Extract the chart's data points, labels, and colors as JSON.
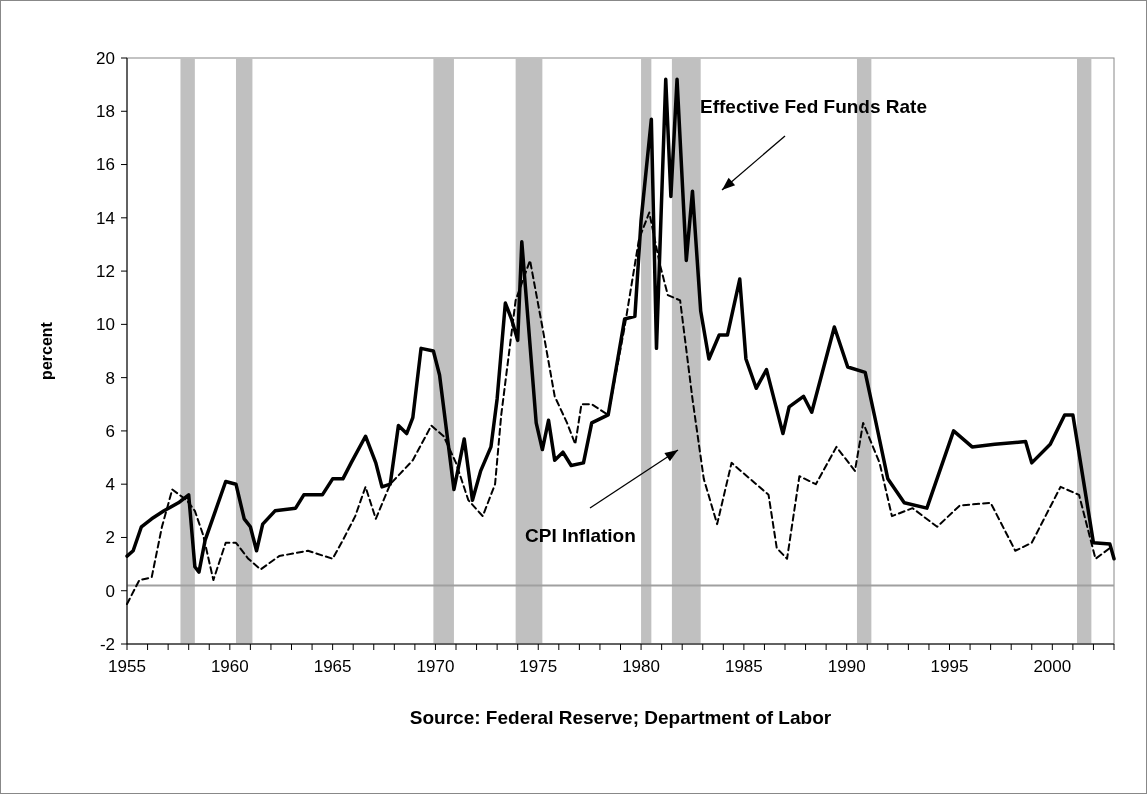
{
  "chart_data": {
    "type": "line",
    "ylabel": "percent",
    "annotations": [
      "Source: Federal Reserve; Department of Labor"
    ],
    "xlim": [
      1955,
      2003
    ],
    "xticks": [
      1955,
      {
        "value": 1956,
        "label": null
      },
      {
        "value": 1957,
        "label": null
      },
      {
        "value": 1958,
        "label": null
      },
      {
        "value": 1959,
        "label": null
      },
      1960,
      {
        "value": 1961,
        "label": null
      },
      {
        "value": 1962,
        "label": null
      },
      {
        "value": 1963,
        "label": null
      },
      {
        "value": 1964,
        "label": null
      },
      1965,
      {
        "value": 1966,
        "label": null
      },
      {
        "value": 1967,
        "label": null
      },
      {
        "value": 1968,
        "label": null
      },
      {
        "value": 1969,
        "label": null
      },
      1970,
      {
        "value": 1971,
        "label": null
      },
      {
        "value": 1972,
        "label": null
      },
      {
        "value": 1973,
        "label": null
      },
      {
        "value": 1974,
        "label": null
      },
      1975,
      {
        "value": 1976,
        "label": null
      },
      {
        "value": 1977,
        "label": null
      },
      {
        "value": 1978,
        "label": null
      },
      {
        "value": 1979,
        "label": null
      },
      1980,
      {
        "value": 1981,
        "label": null
      },
      {
        "value": 1982,
        "label": null
      },
      {
        "value": 1983,
        "label": null
      },
      {
        "value": 1984,
        "label": null
      },
      1985,
      {
        "value": 1986,
        "label": null
      },
      {
        "value": 1987,
        "label": null
      },
      {
        "value": 1988,
        "label": null
      },
      {
        "value": 1989,
        "label": null
      },
      1990,
      {
        "value": 1991,
        "label": null
      },
      {
        "value": 1992,
        "label": null
      },
      {
        "value": 1993,
        "label": null
      },
      {
        "value": 1994,
        "label": null
      },
      1995,
      {
        "value": 1996,
        "label": null
      },
      {
        "value": 1997,
        "label": null
      },
      {
        "value": 1998,
        "label": null
      },
      {
        "value": 1999,
        "label": null
      },
      2000,
      {
        "value": 2001,
        "label": null
      },
      {
        "value": 2002,
        "label": null
      },
      {
        "value": 2003,
        "label": null
      }
    ],
    "ylim": [
      -2,
      20
    ],
    "yticks": [
      -2,
      0,
      2,
      4,
      6,
      8,
      10,
      12,
      14,
      16,
      18,
      20
    ],
    "grid": false,
    "legend": false,
    "marker": "none",
    "series": [
      {
        "name": "Effective Fed Funds Rate",
        "color": "#000000",
        "line_style": "solid",
        "x": [
          1955.0,
          1955.3,
          1955.7,
          1956.2,
          1956.8,
          1957.5,
          1958.0,
          1958.3,
          1958.5,
          1958.8,
          1959.3,
          1959.8,
          1960.3,
          1960.7,
          1961.0,
          1961.3,
          1961.6,
          1962.2,
          1963.2,
          1963.6,
          1964.5,
          1965.0,
          1965.5,
          1965.9,
          1966.6,
          1967.1,
          1967.4,
          1967.8,
          1968.2,
          1968.6,
          1968.9,
          1969.3,
          1969.9,
          1970.2,
          1970.9,
          1971.4,
          1971.8,
          1972.2,
          1972.7,
          1973.0,
          1973.4,
          1973.7,
          1974.0,
          1974.2,
          1974.5,
          1974.9,
          1975.2,
          1975.5,
          1975.8,
          1976.2,
          1976.6,
          1977.2,
          1977.6,
          1978.4,
          1979.2,
          1979.7,
          1980.0,
          1980.5,
          1980.75,
          1981.2,
          1981.45,
          1981.75,
          1982.2,
          1982.5,
          1982.9,
          1983.3,
          1983.8,
          1984.2,
          1984.8,
          1985.1,
          1985.6,
          1986.1,
          1986.9,
          1987.2,
          1987.9,
          1988.3,
          1989.4,
          1990.05,
          1990.9,
          1991.4,
          1992.0,
          1992.8,
          1993.9,
          1995.2,
          1996.1,
          1997.2,
          1998.7,
          1999.0,
          1999.9,
          2000.6,
          2001.0,
          2001.5,
          2002.0,
          2002.8,
          2003.0
        ],
        "values": [
          1.3,
          1.5,
          2.4,
          2.7,
          3.0,
          3.3,
          3.6,
          0.9,
          0.7,
          1.9,
          3.0,
          4.1,
          4.0,
          2.7,
          2.4,
          1.5,
          2.5,
          3.0,
          3.1,
          3.6,
          3.6,
          4.2,
          4.2,
          4.8,
          5.8,
          4.8,
          3.9,
          4.0,
          6.2,
          5.9,
          6.5,
          9.1,
          9.0,
          8.1,
          3.8,
          5.7,
          3.4,
          4.5,
          5.4,
          7.2,
          10.8,
          10.2,
          9.4,
          13.1,
          10.2,
          6.3,
          5.3,
          6.4,
          4.9,
          5.2,
          4.7,
          4.8,
          6.3,
          6.6,
          10.2,
          10.3,
          13.9,
          17.7,
          9.1,
          19.2,
          14.8,
          19.2,
          12.4,
          15.0,
          10.5,
          8.7,
          9.6,
          9.6,
          11.7,
          8.7,
          7.6,
          8.3,
          5.9,
          6.9,
          7.3,
          6.7,
          9.9,
          8.4,
          8.2,
          6.4,
          4.2,
          3.3,
          3.1,
          6.0,
          5.4,
          5.5,
          5.6,
          4.8,
          5.5,
          6.6,
          6.6,
          4.2,
          1.8,
          1.75,
          1.2
        ]
      },
      {
        "name": "CPI Inflation",
        "color": "#000000",
        "line_style": "dashed",
        "x": [
          1955.0,
          1955.6,
          1956.2,
          1956.7,
          1957.2,
          1957.9,
          1958.3,
          1958.7,
          1959.2,
          1959.8,
          1960.3,
          1960.9,
          1961.5,
          1962.4,
          1963.8,
          1965.0,
          1965.5,
          1966.1,
          1966.6,
          1967.1,
          1967.8,
          1968.9,
          1969.8,
          1970.4,
          1971.0,
          1971.6,
          1972.3,
          1972.9,
          1973.2,
          1973.9,
          1974.6,
          1975.2,
          1975.8,
          1976.4,
          1976.8,
          1977.1,
          1977.6,
          1978.4,
          1979.2,
          1979.9,
          1980.4,
          1980.9,
          1981.3,
          1981.9,
          1982.5,
          1983.05,
          1983.7,
          1984.4,
          1986.2,
          1986.6,
          1987.1,
          1987.7,
          1988.5,
          1989.5,
          1990.4,
          1990.8,
          1991.6,
          1992.2,
          1993.2,
          1994.4,
          1995.5,
          1997.0,
          1998.2,
          1999.0,
          2000.4,
          2001.3,
          2002.1,
          2002.8
        ],
        "values": [
          -0.5,
          0.4,
          0.5,
          2.4,
          3.8,
          3.4,
          3.0,
          2.1,
          0.4,
          1.8,
          1.8,
          1.2,
          0.8,
          1.3,
          1.5,
          1.2,
          1.9,
          2.8,
          3.9,
          2.7,
          4.0,
          4.9,
          6.2,
          5.8,
          4.8,
          3.4,
          2.8,
          4.0,
          6.6,
          10.9,
          12.4,
          9.9,
          7.3,
          6.3,
          5.5,
          7.0,
          7.0,
          6.6,
          9.9,
          13.2,
          14.2,
          12.3,
          11.1,
          10.9,
          7.2,
          4.2,
          2.5,
          4.8,
          3.6,
          1.6,
          1.2,
          4.3,
          4.0,
          5.4,
          4.5,
          6.3,
          4.8,
          2.8,
          3.1,
          2.4,
          3.2,
          3.3,
          1.5,
          1.8,
          3.9,
          3.6,
          1.2,
          1.6
        ]
      }
    ],
    "ref_lines": [
      {
        "axis": "y",
        "value": 0.2,
        "color": "#a0a0a0"
      }
    ],
    "bands": [
      {
        "axis": "x",
        "from": 1957.6,
        "to": 1958.3,
        "color": "#c0c0c0"
      },
      {
        "axis": "x",
        "from": 1960.3,
        "to": 1961.1,
        "color": "#c0c0c0"
      },
      {
        "axis": "x",
        "from": 1969.9,
        "to": 1970.9,
        "color": "#c0c0c0"
      },
      {
        "axis": "x",
        "from": 1973.9,
        "to": 1975.2,
        "color": "#c0c0c0"
      },
      {
        "axis": "x",
        "from": 1980.0,
        "to": 1980.5,
        "color": "#c0c0c0"
      },
      {
        "axis": "x",
        "from": 1981.5,
        "to": 1982.9,
        "color": "#c0c0c0"
      },
      {
        "axis": "x",
        "from": 1990.5,
        "to": 1991.2,
        "color": "#c0c0c0"
      },
      {
        "axis": "x",
        "from": 2001.2,
        "to": 2001.9,
        "color": "#c0c0c0"
      }
    ]
  }
}
